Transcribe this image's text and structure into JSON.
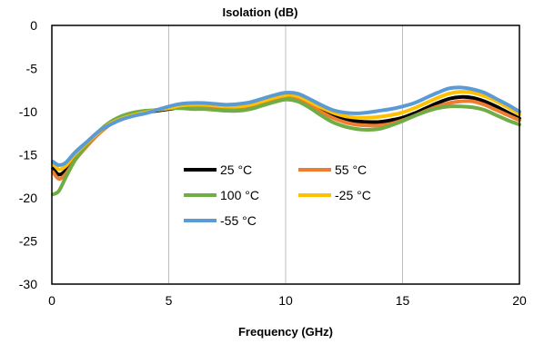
{
  "chart_data": {
    "type": "line",
    "title": "Isolation (dB)",
    "xlabel": "Frequency (GHz)",
    "ylabel": "",
    "xlim": [
      0,
      20
    ],
    "ylim": [
      -30,
      0
    ],
    "xticks": [
      0,
      5,
      10,
      15,
      20
    ],
    "yticks": [
      0,
      -5,
      -10,
      -15,
      -20,
      -25,
      -30
    ],
    "grid": "vertical",
    "legend_placement": "center-left",
    "x": [
      0.05,
      0.3,
      0.6,
      1,
      1.5,
      2,
      2.5,
      3,
      3.5,
      4,
      4.5,
      5,
      5.5,
      6,
      6.5,
      7,
      7.5,
      8,
      8.5,
      9,
      9.5,
      10,
      10.5,
      11,
      11.5,
      12,
      12.5,
      13,
      13.5,
      14,
      14.5,
      15,
      15.5,
      16,
      16.5,
      17,
      17.5,
      18,
      18.5,
      19,
      19.5,
      20
    ],
    "series": [
      {
        "name": "25 °C",
        "color": "#000000",
        "values": [
          -16.6,
          -17.3,
          -16.8,
          -15.3,
          -13.8,
          -12.5,
          -11.4,
          -10.8,
          -10.4,
          -10.1,
          -9.9,
          -9.7,
          -9.5,
          -9.4,
          -9.4,
          -9.5,
          -9.6,
          -9.6,
          -9.4,
          -9.0,
          -8.6,
          -8.3,
          -8.4,
          -9.0,
          -9.8,
          -10.4,
          -10.8,
          -11.1,
          -11.2,
          -11.2,
          -11.0,
          -10.7,
          -10.2,
          -9.6,
          -9.0,
          -8.5,
          -8.3,
          -8.4,
          -8.8,
          -9.4,
          -10.1,
          -10.8
        ]
      },
      {
        "name": "55 °C",
        "color": "#ED7D31",
        "values": [
          -17.0,
          -17.8,
          -17.2,
          -15.6,
          -14.0,
          -12.6,
          -11.5,
          -10.8,
          -10.3,
          -10.0,
          -9.8,
          -9.6,
          -9.5,
          -9.4,
          -9.5,
          -9.6,
          -9.7,
          -9.7,
          -9.5,
          -9.1,
          -8.7,
          -8.5,
          -8.6,
          -9.2,
          -10.0,
          -10.7,
          -11.2,
          -11.5,
          -11.6,
          -11.6,
          -11.4,
          -11.0,
          -10.5,
          -9.9,
          -9.4,
          -9.0,
          -8.8,
          -8.8,
          -9.2,
          -9.8,
          -10.4,
          -11.0
        ]
      },
      {
        "name": "100 °C",
        "color": "#70AD47",
        "values": [
          -19.6,
          -19.2,
          -17.6,
          -15.6,
          -13.8,
          -12.3,
          -11.2,
          -10.5,
          -10.1,
          -9.9,
          -9.8,
          -9.6,
          -9.6,
          -9.7,
          -9.7,
          -9.8,
          -9.9,
          -9.9,
          -9.7,
          -9.3,
          -8.9,
          -8.6,
          -8.8,
          -9.5,
          -10.4,
          -11.2,
          -11.7,
          -12.0,
          -12.1,
          -12.0,
          -11.6,
          -11.1,
          -10.5,
          -10.0,
          -9.6,
          -9.4,
          -9.4,
          -9.5,
          -9.8,
          -10.4,
          -11.0,
          -11.5
        ]
      },
      {
        "name": "-25 °C",
        "color": "#FFC000",
        "values": [
          -16.0,
          -16.7,
          -16.3,
          -14.9,
          -13.6,
          -12.4,
          -11.4,
          -10.8,
          -10.4,
          -10.1,
          -9.8,
          -9.6,
          -9.3,
          -9.2,
          -9.2,
          -9.3,
          -9.4,
          -9.4,
          -9.2,
          -8.8,
          -8.4,
          -8.1,
          -8.2,
          -8.8,
          -9.5,
          -10.1,
          -10.5,
          -10.7,
          -10.7,
          -10.6,
          -10.4,
          -10.1,
          -9.6,
          -9.0,
          -8.4,
          -7.9,
          -7.7,
          -7.8,
          -8.2,
          -8.8,
          -9.5,
          -10.3
        ]
      },
      {
        "name": "-55 °C",
        "color": "#5B9BD5",
        "values": [
          -15.8,
          -16.2,
          -15.9,
          -14.7,
          -13.5,
          -12.3,
          -11.5,
          -10.9,
          -10.5,
          -10.2,
          -9.8,
          -9.4,
          -9.1,
          -9.0,
          -9.0,
          -9.1,
          -9.2,
          -9.1,
          -8.9,
          -8.5,
          -8.1,
          -7.8,
          -7.9,
          -8.5,
          -9.2,
          -9.8,
          -10.1,
          -10.2,
          -10.1,
          -9.9,
          -9.7,
          -9.4,
          -9.0,
          -8.4,
          -7.8,
          -7.3,
          -7.2,
          -7.4,
          -7.8,
          -8.5,
          -9.2,
          -10.0
        ]
      }
    ]
  }
}
